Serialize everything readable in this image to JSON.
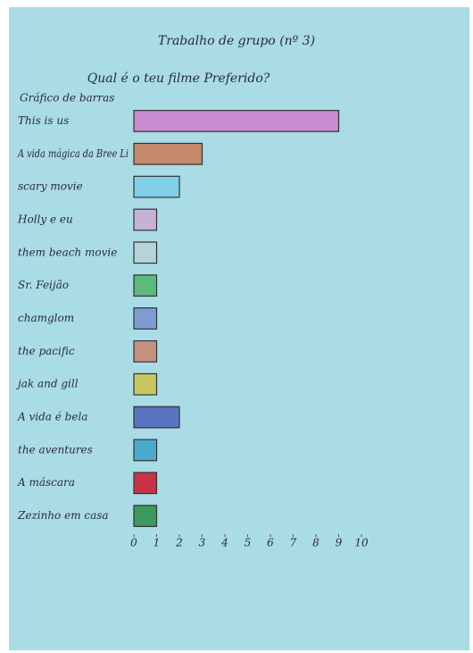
{
  "chart_data": {
    "type": "hbar",
    "title": "Trabalho de grupo (nº 3)",
    "subtitle": "Qual é o teu filme Preferido?",
    "chart_label": "Gráfico de barras",
    "categories": [
      "This is us",
      "A vida mágica da Bree Li",
      "scary movie",
      "Holly e eu",
      "them beach movie",
      "Sr. Feijão",
      "chamglom",
      "the pacific",
      "jak and gill",
      "A vida é bela",
      "the aventures",
      "A máscara",
      "Zezinho em casa"
    ],
    "values": [
      9,
      3,
      2,
      1,
      1,
      1,
      1,
      1,
      1,
      2,
      1,
      1,
      1
    ],
    "colors": [
      "#c98ad0",
      "#c4886a",
      "#7fd0e8",
      "#c6b2d8",
      "#b6d2da",
      "#5cba7c",
      "#7e9cd2",
      "#c49282",
      "#c6c85e",
      "#5a72c2",
      "#4aaace",
      "#c83444",
      "#3c9a5c"
    ],
    "xlim": [
      0,
      10
    ],
    "xticks": [
      0,
      1,
      2,
      3,
      4,
      5,
      6,
      7,
      8,
      9,
      10
    ]
  }
}
